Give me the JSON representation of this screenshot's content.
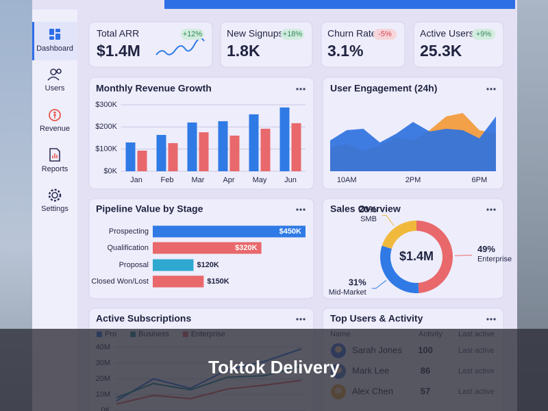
{
  "sidebar": {
    "items": [
      "Dashboard",
      "Users",
      "Revenue",
      "Reports",
      "Settings"
    ]
  },
  "kpis": [
    {
      "label": "Total ARR",
      "value": "$1.4M",
      "change": "+12%"
    },
    {
      "label": "New Signups",
      "value": "1.8K",
      "change": "+18%"
    },
    {
      "label": "Churn Rate",
      "value": "3.1%",
      "change": "-5%"
    },
    {
      "label": "Active Users",
      "value": "25.3K",
      "change": "+9%"
    }
  ],
  "chart_data": [
    {
      "type": "bar",
      "title": "Monthly Revenue Growth",
      "categories": [
        "Jan",
        "Feb",
        "Mar",
        "Apr",
        "May",
        "Jun"
      ],
      "series": [
        {
          "color": "#2f7ae5",
          "values": [
            130,
            164,
            220,
            226,
            257,
            288
          ]
        },
        {
          "color": "#e8686b",
          "values": [
            93,
            127,
            176,
            161,
            192,
            217
          ]
        }
      ],
      "ylim": [
        0,
        300
      ],
      "yticks": [
        {
          "value": 0,
          "label": "$0K"
        },
        {
          "value": 100,
          "label": "$100K"
        },
        {
          "value": 200,
          "label": "$200K"
        },
        {
          "value": 300,
          "label": "$300K"
        }
      ],
      "grid": true
    },
    {
      "type": "area",
      "title": "User Engagement (24h)",
      "x": [
        9,
        10,
        11,
        12,
        13,
        14,
        15,
        16,
        17,
        18,
        19
      ],
      "series": [
        {
          "color": "#f29a3a",
          "values": [
            35,
            40,
            30,
            38,
            50,
            45,
            60,
            80,
            85,
            60,
            55
          ]
        },
        {
          "color": "#2f72e0",
          "values": [
            45,
            60,
            62,
            42,
            55,
            72,
            58,
            62,
            60,
            48,
            80
          ]
        }
      ],
      "xlim": [
        9,
        19
      ],
      "xticks": [
        {
          "value": 10,
          "label": "10AM"
        },
        {
          "value": 14,
          "label": "2PM"
        },
        {
          "value": 18,
          "label": "6PM"
        }
      ],
      "ylim": [
        0,
        100
      ]
    },
    {
      "type": "hbar",
      "title": "Pipeline Value by Stage",
      "categories": [
        "Prospecting",
        "Qualification",
        "Proposal",
        "Closed Won/Lost"
      ],
      "values": [
        450,
        320,
        120,
        150
      ],
      "value_labels": [
        "$450K",
        "$320K",
        "$120K",
        "$150K"
      ],
      "colors": [
        "#2f7ae5",
        "#e8686b",
        "#2fa9cf",
        "#e8686b"
      ]
    },
    {
      "type": "pie",
      "title": "Sales Overview",
      "center_label": "$1.4M",
      "categories": [
        "Enterprise",
        "Mid-Market",
        "SMB"
      ],
      "values": [
        49,
        31,
        20
      ],
      "value_labels": [
        "49%",
        "31%",
        "20%"
      ],
      "colors": [
        "#e8686b",
        "#2f7ae5",
        "#f0b93c"
      ],
      "donut": true
    },
    {
      "type": "line",
      "title": "Active Subscriptions",
      "categories": [
        null,
        null,
        null,
        null,
        null,
        null
      ],
      "series": [
        {
          "name": "Pro",
          "color": "#2f72e0",
          "values": [
            6,
            20,
            14,
            25.6,
            31,
            39
          ]
        },
        {
          "name": "Business",
          "color": "#1f8a9a",
          "values": [
            8,
            17,
            13,
            21,
            22,
            28
          ]
        },
        {
          "name": "Enterprise",
          "color": "#e05a62",
          "values": [
            4,
            9.5,
            7.4,
            13.5,
            16,
            19
          ]
        }
      ],
      "ylim": [
        0,
        40
      ],
      "yticks": [
        {
          "value": 0,
          "label": "0K"
        },
        {
          "value": 10,
          "label": "10M"
        },
        {
          "value": 20,
          "label": "20M"
        },
        {
          "value": 30,
          "label": "30M"
        },
        {
          "value": 40,
          "label": "40M"
        }
      ],
      "grid": true,
      "legend": "top-left"
    }
  ],
  "table": {
    "title": "Top Users & Activity",
    "columns": [
      "Name",
      "Activity",
      "Last active"
    ],
    "rows": [
      [
        "Sarah Jones",
        100,
        "Last active"
      ],
      [
        "Mark Lee",
        86,
        "Last active"
      ],
      [
        "Alex Chen",
        57,
        "Last active"
      ]
    ]
  },
  "caption": "Toktok Delivery"
}
